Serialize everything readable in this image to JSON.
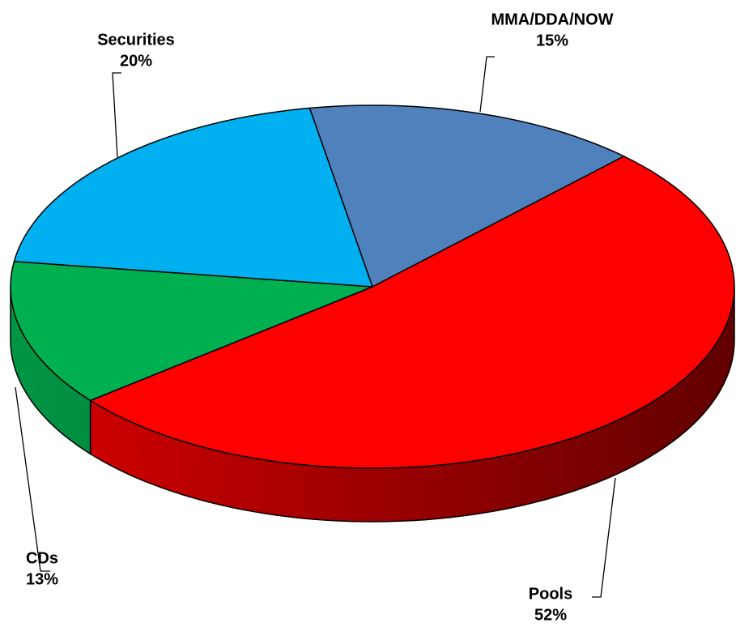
{
  "chart_data": {
    "type": "pie3d",
    "categories": [
      "MMA/DDA/NOW",
      "Pools",
      "CDs",
      "Securities"
    ],
    "values": [
      15,
      52,
      13,
      20
    ],
    "value_labels": [
      "15%",
      "52%",
      "13%",
      "20%"
    ],
    "colors": [
      "#4f81bd",
      "#ff0000",
      "#00b050",
      "#00b0f0"
    ]
  }
}
